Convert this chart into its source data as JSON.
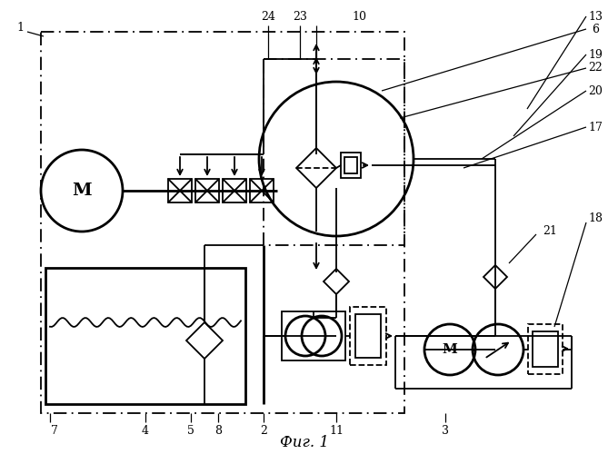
{
  "title": "Фиг. 1",
  "bg_color": "#ffffff",
  "line_color": "#000000",
  "figsize": [
    6.69,
    5.0
  ],
  "dpi": 100
}
